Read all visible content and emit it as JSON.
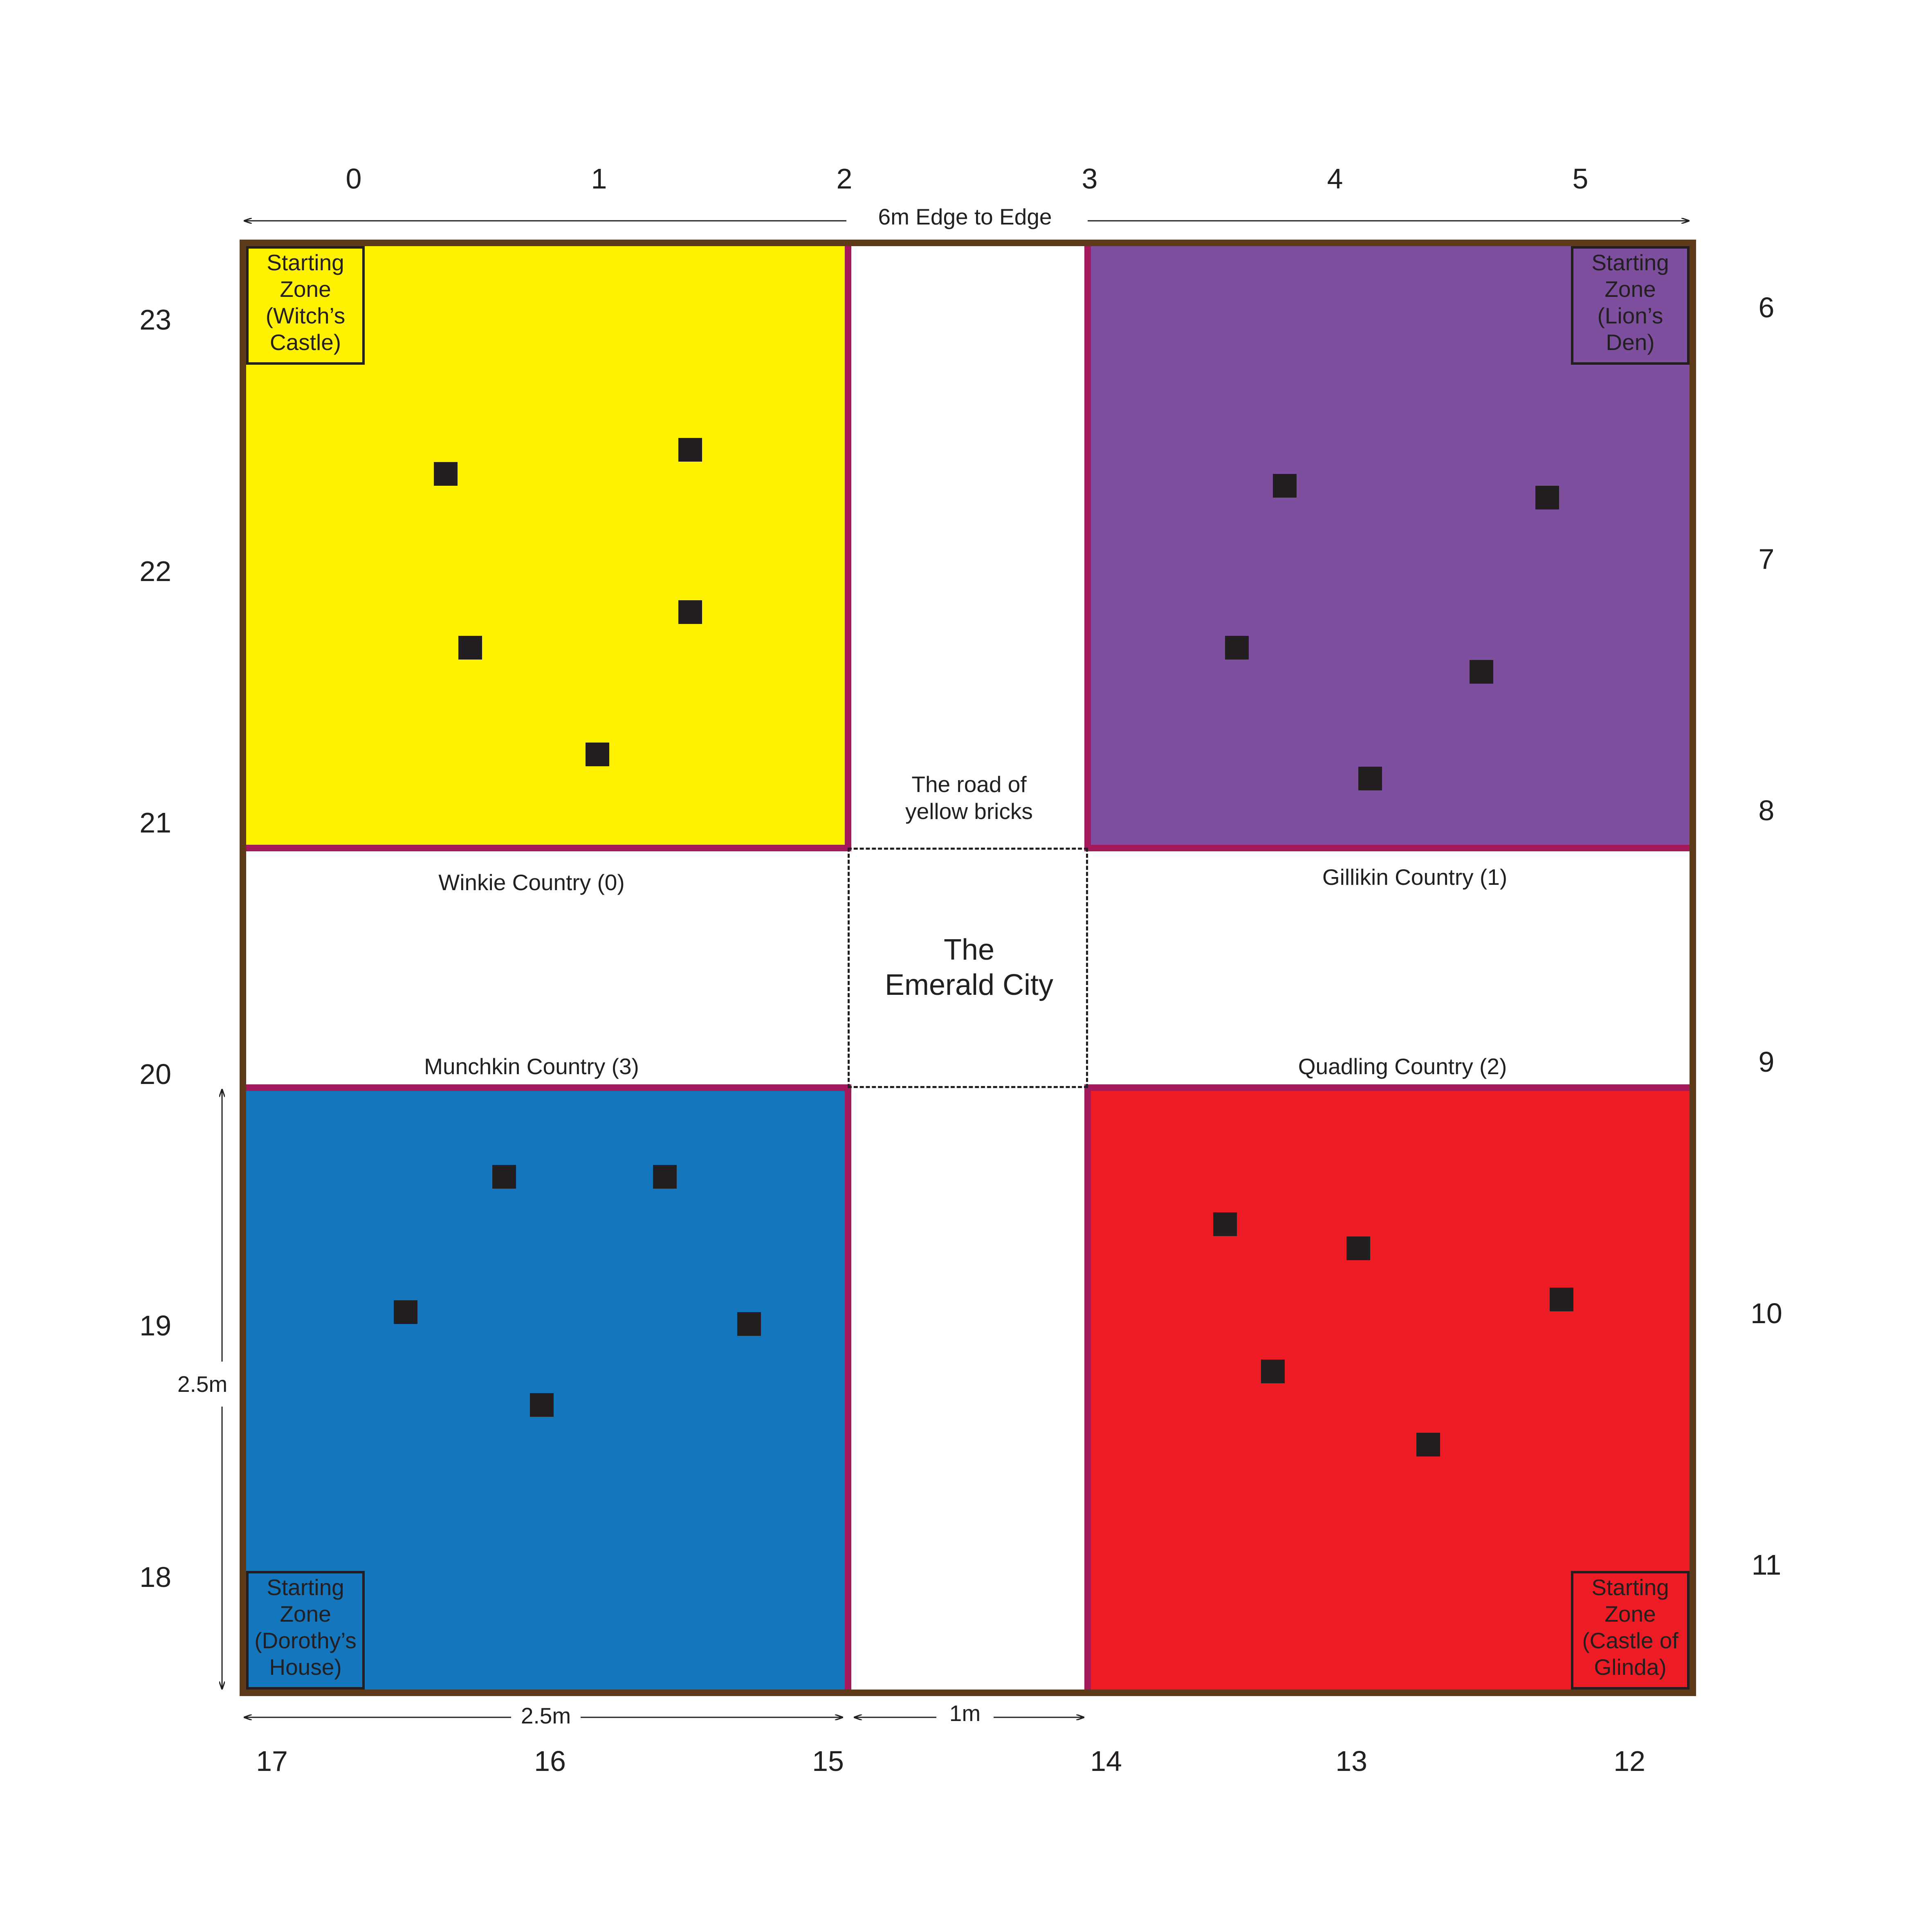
{
  "colors": {
    "outer_border": "#5c3a1a",
    "country_border": "#a3195b",
    "winkie": "#fff200",
    "gillikin": "#7f4f9f",
    "munchkin": "#1476bd",
    "quadling": "#ed1c24",
    "marker": "#231f20",
    "center": "#ffffff"
  },
  "labels": {
    "top_coords": [
      "0",
      "1",
      "2",
      "3",
      "4",
      "5"
    ],
    "right_coords": [
      "6",
      "7",
      "8",
      "9",
      "10",
      "11"
    ],
    "bottom_coords": [
      "17",
      "16",
      "15",
      "14",
      "13",
      "12"
    ],
    "left_coords": [
      "23",
      "22",
      "21",
      "20",
      "19",
      "18"
    ],
    "edge_to_edge": "6m Edge to Edge",
    "dim_bottom_zone": "2.5m",
    "dim_bottom_road": "1m",
    "dim_left_zone": "2.5m",
    "road_line1": "The road of",
    "road_line2": "yellow bricks",
    "city_line1": "The",
    "city_line2": "Emerald City",
    "winkie_name": "Winkie Country (0)",
    "gillikin_name": "Gillikin Country (1)",
    "quadling_name": "Quadling Country (2)",
    "munchkin_name": "Munchkin Country (3)",
    "sz_witch": [
      "Starting",
      "Zone",
      "(Witch’s",
      "Castle)"
    ],
    "sz_lion": [
      "Starting",
      "Zone",
      "(Lion’s Den)"
    ],
    "sz_dorothy": [
      "Starting",
      "Zone",
      "(Dorothy’s",
      "House)"
    ],
    "sz_glinda": [
      "Starting",
      "Zone",
      "(Castle of",
      "Glinda)"
    ]
  },
  "markers": {
    "winkie": 5,
    "gillikin": 5,
    "munchkin": 5,
    "quadling": 5
  }
}
